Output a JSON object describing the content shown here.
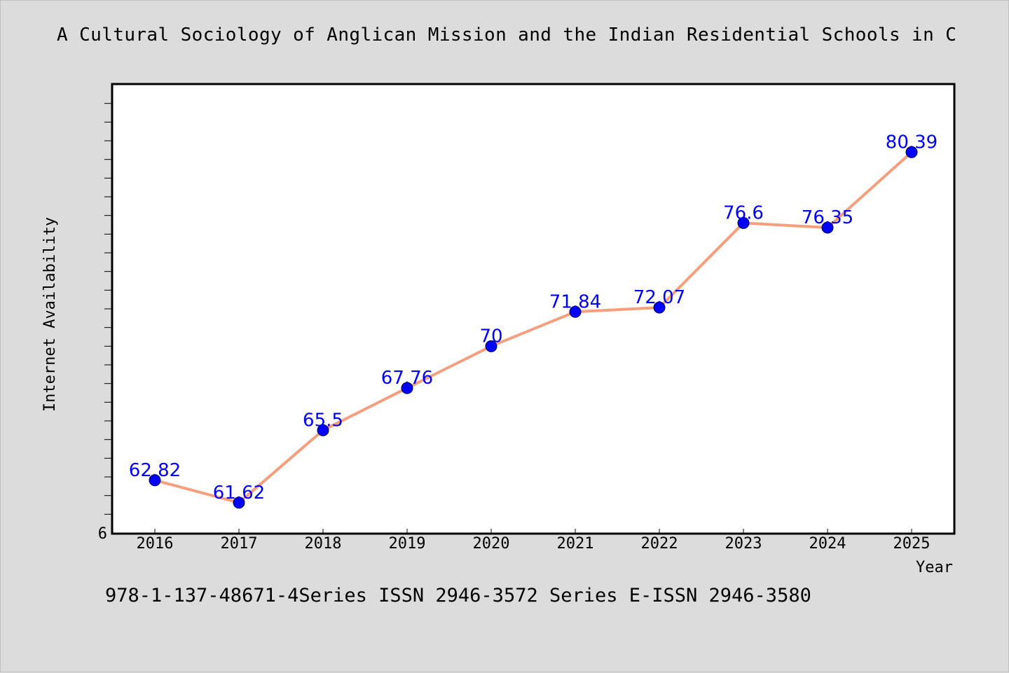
{
  "chart_data": {
    "type": "line",
    "title": "A Cultural Sociology of Anglican Mission and the Indian Residential Schools in C",
    "xlabel": "Year",
    "ylabel": "Internet Availability",
    "x": [
      "2016",
      "2017",
      "2018",
      "2019",
      "2020",
      "2021",
      "2022",
      "2023",
      "2024",
      "2025"
    ],
    "values": [
      62.82,
      61.62,
      65.5,
      67.76,
      70,
      71.84,
      72.07,
      76.6,
      76.35,
      80.39
    ],
    "data_labels": [
      "62.82",
      "61.62",
      "65.5",
      "67.76",
      "70",
      "71.84",
      "72.07",
      "76.6",
      "76.35",
      "80.39"
    ],
    "y_tick_labels": [
      "6"
    ],
    "ylim": [
      60,
      84
    ],
    "grid": false,
    "line_color": "#f4a07e",
    "marker_color": "#0000ff",
    "label_color": "#0000ff"
  },
  "footer": {
    "text": "978-1-137-48671-4Series ISSN 2946-3572 Series E-ISSN 2946-3580"
  }
}
